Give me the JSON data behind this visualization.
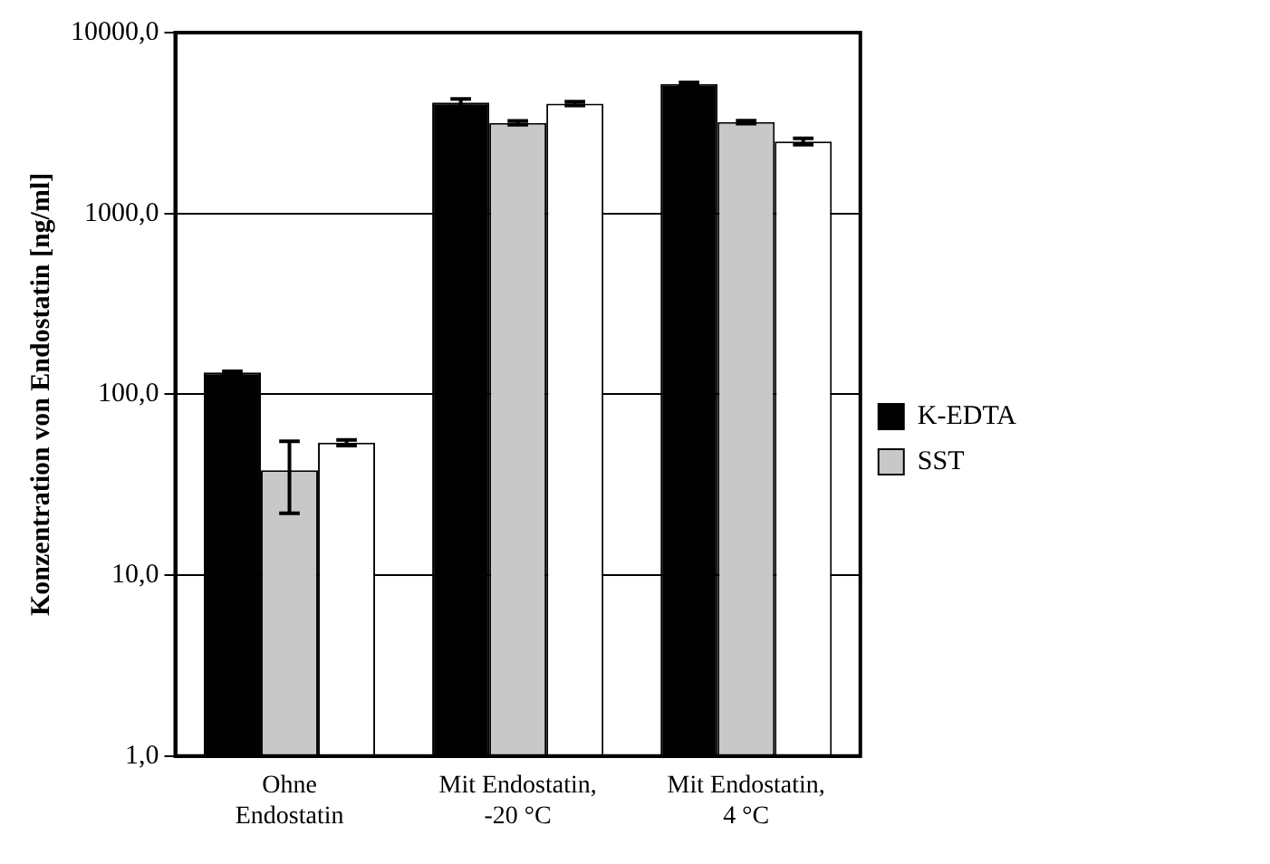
{
  "chart_data": {
    "type": "bar",
    "ylabel": "Konzentration von Endostatin [ng/ml]",
    "categories": [
      "Ohne\nEndostatin",
      "Mit Endostatin,\n-20 °C",
      "Mit Endostatin,\n4 °C"
    ],
    "series": [
      {
        "name": "K-EDTA",
        "color": "#000000",
        "values": [
          132,
          4100,
          5200
        ],
        "errors": [
          2,
          200,
          100
        ]
      },
      {
        "name": "SST",
        "color": "#c8c8c8",
        "values": [
          38,
          3170,
          3200
        ],
        "errors": [
          [
            22,
            55
          ],
          80,
          60
        ]
      },
      {
        "color": "#ffffff",
        "values": [
          54,
          4050,
          2500
        ],
        "errors": [
          2,
          100,
          100
        ]
      }
    ],
    "log": true,
    "ylim": [
      1,
      10000
    ],
    "yticks": [
      {
        "value": 1,
        "label": "1,0"
      },
      {
        "value": 10,
        "label": "10,0"
      },
      {
        "value": 100,
        "label": "100,0"
      },
      {
        "value": 1000,
        "label": "1000,0"
      },
      {
        "value": 10000,
        "label": "10000,0"
      }
    ],
    "grid": "y",
    "legend": "right"
  }
}
